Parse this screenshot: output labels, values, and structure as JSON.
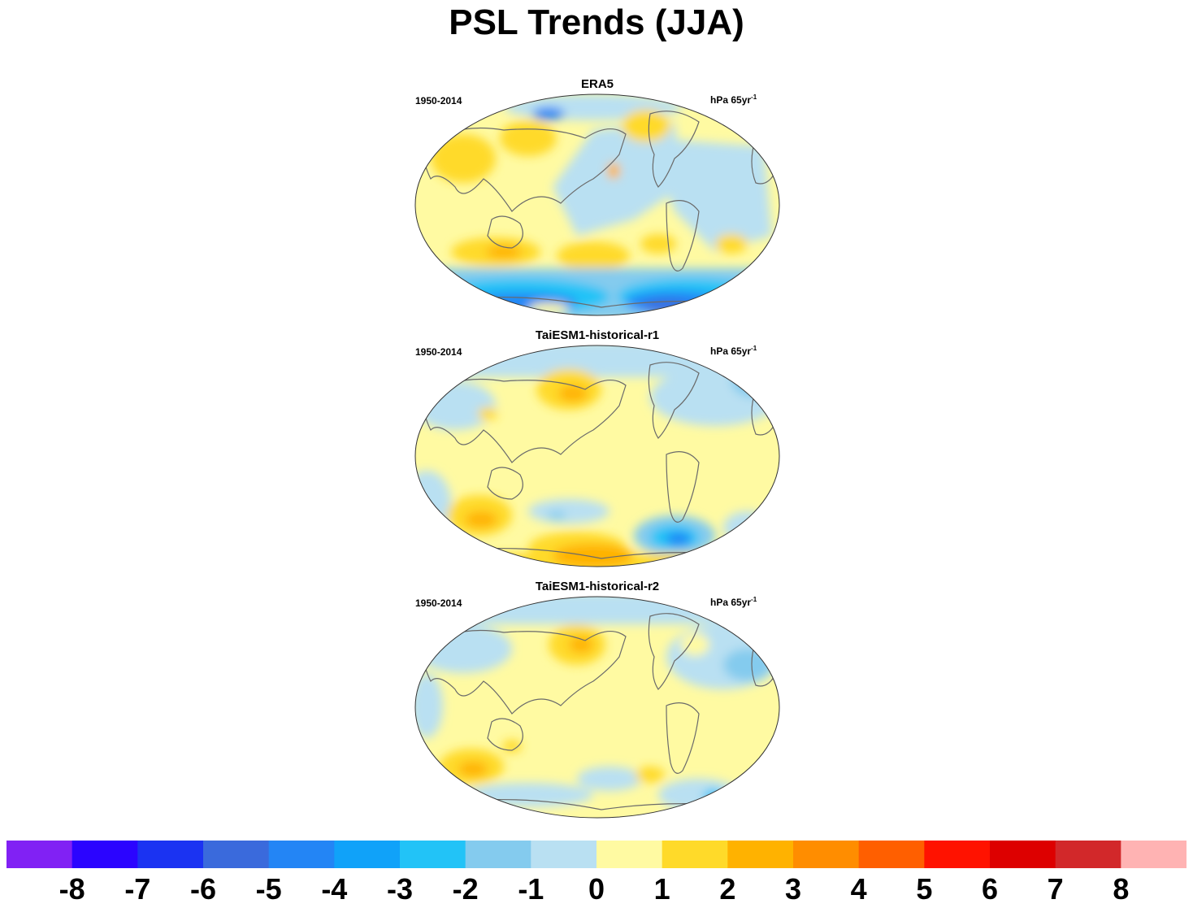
{
  "title": "PSL Trends (JJA)",
  "colors": {
    "coastline": "#6a6a6a",
    "outline": "#333333"
  },
  "chart_data": [
    {
      "type": "heatmap",
      "title": "ERA5",
      "period": "1950-2014",
      "units_base": "hPa 65yr",
      "units_exp": "-1",
      "projection": "robinson-like global map",
      "regions": [
        {
          "region": "Arctic / Greenland",
          "value": 1.5
        },
        {
          "region": "Eurasia mid-latitudes",
          "value": 1.5
        },
        {
          "region": "Pacific tropics",
          "value": -0.5
        },
        {
          "region": "Atlantic",
          "value": -0.5
        },
        {
          "region": "Indian Ocean / Australia",
          "value": 0.5
        },
        {
          "region": "Southern mid-latitudes belt",
          "value": 2
        },
        {
          "region": "Southern Ocean",
          "value": -4
        },
        {
          "region": "Antarctica",
          "value": -5
        }
      ]
    },
    {
      "type": "heatmap",
      "title": "TaiESM1-historical-r1",
      "period": "1950-2014",
      "units_base": "hPa 65yr",
      "units_exp": "-1",
      "projection": "robinson-like global map",
      "regions": [
        {
          "region": "Arctic",
          "value": -1
        },
        {
          "region": "North Pacific",
          "value": 2
        },
        {
          "region": "Tropics",
          "value": 0.5
        },
        {
          "region": "South Indian Ocean",
          "value": 2
        },
        {
          "region": "South Atlantic",
          "value": -3
        },
        {
          "region": "Antarctica",
          "value": 2
        }
      ]
    },
    {
      "type": "heatmap",
      "title": "TaiESM1-historical-r2",
      "period": "1950-2014",
      "units_base": "hPa 65yr",
      "units_exp": "-1",
      "projection": "robinson-like global map",
      "regions": [
        {
          "region": "Arctic",
          "value": -1
        },
        {
          "region": "North Pacific",
          "value": 2
        },
        {
          "region": "Tropics",
          "value": 0.5
        },
        {
          "region": "South Indian Ocean",
          "value": 2
        },
        {
          "region": "Southern Ocean",
          "value": -1
        },
        {
          "region": "South Atlantic",
          "value": -2.5
        }
      ]
    }
  ],
  "colorbar": {
    "labels": [
      "-8",
      "-7",
      "-6",
      "-5",
      "-4",
      "-3",
      "-2",
      "-1",
      "0",
      "1",
      "2",
      "3",
      "4",
      "5",
      "6",
      "7",
      "8"
    ],
    "colors": [
      "#8121f4",
      "#2b04ff",
      "#1b33f2",
      "#3a6adc",
      "#2385f5",
      "#10a2f9",
      "#22c3f7",
      "#84cbee",
      "#b9e0f2",
      "#fffaa2",
      "#ffda29",
      "#ffb200",
      "#ff8d00",
      "#ff5f00",
      "#ff1200",
      "#dd0000",
      "#d2282a",
      "#ffb3b3"
    ]
  }
}
